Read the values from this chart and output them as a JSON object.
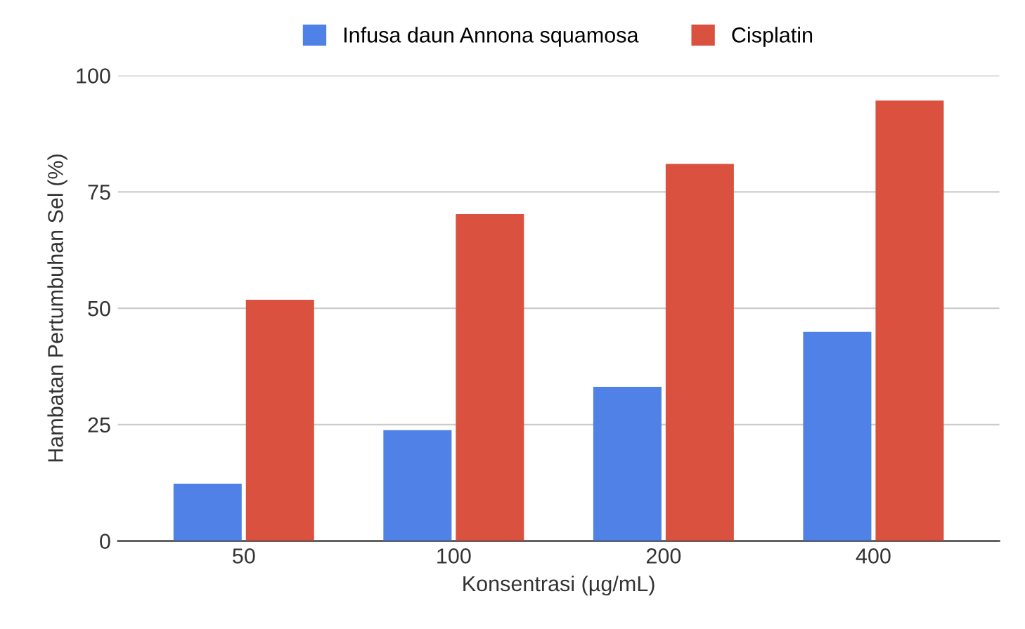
{
  "chart_data": {
    "type": "bar",
    "xlabel": "Konsentrasi (µg/mL)",
    "ylabel": "Hambatan Pertumbuhan Sel (%)",
    "categories": [
      "50",
      "100",
      "200",
      "400"
    ],
    "series": [
      {
        "name": "Infusa daun Annona squamosa",
        "color": "#4f81e6",
        "values": [
          12.3,
          23.8,
          33.1,
          44.9
        ]
      },
      {
        "name": "Cisplatin",
        "color": "#db5140",
        "values": [
          51.8,
          70.2,
          81.0,
          94.6
        ]
      }
    ],
    "ylim": [
      0,
      100
    ],
    "yticks": [
      0,
      25,
      50,
      75,
      100
    ],
    "grid": "y",
    "legend": "top"
  }
}
